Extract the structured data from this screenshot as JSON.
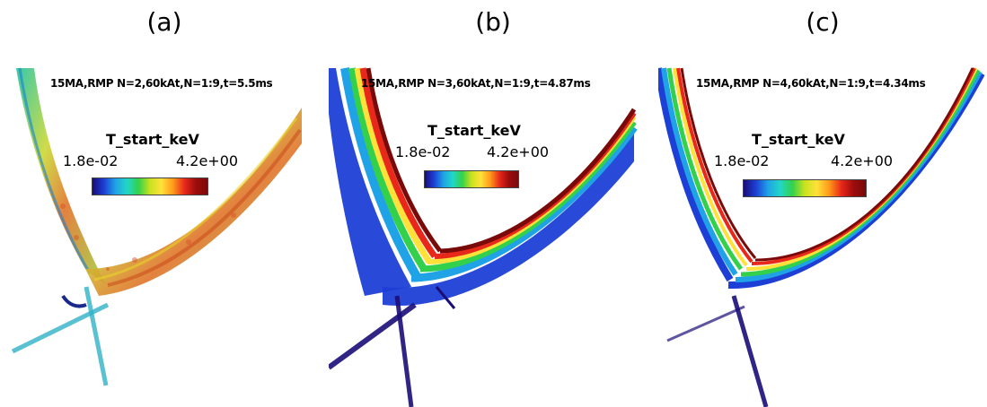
{
  "panels": [
    {
      "label": "(a)",
      "info": "15MA,RMP N=2,60kAt,N=1:9,t=5.5ms",
      "colorbar": {
        "title": "T_start_keV",
        "min": "1.8e-02",
        "max": "4.2e+00"
      }
    },
    {
      "label": "(b)",
      "info": "15MA,RMP N=3,60kAt,N=1:9,t=4.87ms",
      "colorbar": {
        "title": "T_start_keV",
        "min": "1.8e-02",
        "max": "4.2e+00"
      }
    },
    {
      "label": "(c)",
      "info": "15MA,RMP N=4,60kAt,N=1:9,t=4.34ms",
      "colorbar": {
        "title": "T_start_keV",
        "min": "1.8e-02",
        "max": "4.2e+00"
      }
    }
  ],
  "colors": {
    "low": "#1a0d78",
    "mid": "#33d14b",
    "high": "#7a0a0a"
  }
}
